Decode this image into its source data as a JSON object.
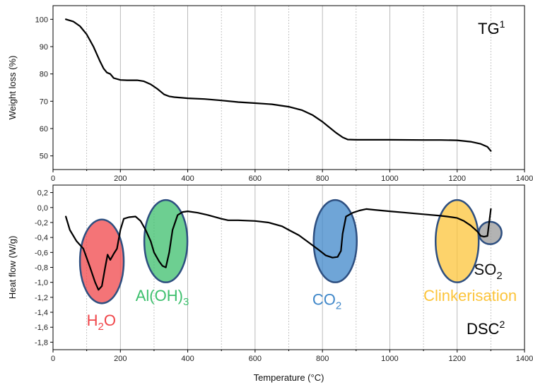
{
  "palette": {
    "h2o": "#f0464a",
    "aloh3": "#3cbf6c",
    "co2": "#3f87c9",
    "clinker": "#fcc43a",
    "so2": "#9a9a9a",
    "outline": "#2e4f80",
    "line": "#000000"
  },
  "chart_data": [
    {
      "type": "line",
      "id": "tg",
      "label_text": "TG",
      "label_sup": "1",
      "xlabel": "",
      "ylabel": "Weight loss (%)",
      "xlim": [
        0,
        1400
      ],
      "ylim": [
        45,
        105
      ],
      "x_ticks": [
        "0",
        "200",
        "400",
        "600",
        "800",
        "1000",
        "1200",
        "1400"
      ],
      "y_ticks": [
        "50",
        "60",
        "70",
        "80",
        "90",
        "100"
      ],
      "x_ticks_values": [
        0,
        200,
        400,
        600,
        800,
        1000,
        1200,
        1400
      ],
      "y_ticks_values": [
        50,
        60,
        70,
        80,
        90,
        100
      ],
      "grid": "vertical, solid at 200-step, dotted in between",
      "series": [
        {
          "x": [
            38,
            60,
            80,
            100,
            120,
            140,
            150,
            160,
            170,
            180,
            200,
            220,
            250,
            270,
            290,
            310,
            330,
            345,
            360,
            400,
            450,
            500,
            550,
            600,
            650,
            700,
            740,
            770,
            800,
            820,
            840,
            860,
            875,
            900,
            950,
            1000,
            1100,
            1150,
            1200,
            1240,
            1270,
            1290,
            1300
          ],
          "y": [
            100,
            99.2,
            97.5,
            94.5,
            90,
            84.5,
            82,
            80.5,
            80,
            78.5,
            77.8,
            77.7,
            77.7,
            77.3,
            76.2,
            74.5,
            72.5,
            71.8,
            71.5,
            71.1,
            70.8,
            70.3,
            69.7,
            69.3,
            68.9,
            68.0,
            66.7,
            65.0,
            62.5,
            60.5,
            58.5,
            56.8,
            56.0,
            55.9,
            55.9,
            55.9,
            55.8,
            55.8,
            55.7,
            55.2,
            54.4,
            53.3,
            51.8
          ]
        }
      ]
    },
    {
      "type": "line",
      "id": "dsc",
      "label_text": "DSC",
      "label_sup": "2",
      "xlabel": "Temperature (°C)",
      "ylabel": "Heat flow (W/g)",
      "xlim": [
        0,
        1400
      ],
      "ylim": [
        -1.9,
        0.3
      ],
      "x_ticks": [
        "0",
        "200",
        "400",
        "600",
        "800",
        "1000",
        "1200",
        "1400"
      ],
      "y_ticks": [
        "0,2",
        "0,0",
        "-0,2",
        "-0,4",
        "-0,6",
        "-0,8",
        "-1,0",
        "-1,2",
        "-1,4",
        "-1,6",
        "-1,8"
      ],
      "x_ticks_values": [
        0,
        200,
        400,
        600,
        800,
        1000,
        1200,
        1400
      ],
      "y_ticks_values": [
        0.2,
        0,
        -0.2,
        -0.4,
        -0.6,
        -0.8,
        -1.0,
        -1.2,
        -1.4,
        -1.6,
        -1.8
      ],
      "grid": "vertical, solid at 200-step, dotted in between",
      "series": [
        {
          "x": [
            38,
            50,
            70,
            90,
            110,
            125,
            135,
            145,
            155,
            162,
            170,
            180,
            190,
            200,
            210,
            225,
            245,
            260,
            275,
            290,
            300,
            315,
            325,
            335,
            345,
            355,
            370,
            385,
            400,
            430,
            460,
            500,
            520,
            550,
            600,
            640,
            680,
            700,
            730,
            760,
            790,
            810,
            830,
            845,
            855,
            860,
            870,
            890,
            910,
            930,
            950,
            1000,
            1050,
            1100,
            1150,
            1170,
            1185,
            1200,
            1220,
            1240,
            1260,
            1270,
            1280,
            1290,
            1300
          ],
          "y": [
            -0.12,
            -0.3,
            -0.45,
            -0.55,
            -0.8,
            -1.0,
            -1.1,
            -1.05,
            -0.8,
            -0.63,
            -0.7,
            -0.62,
            -0.55,
            -0.3,
            -0.15,
            -0.13,
            -0.12,
            -0.18,
            -0.3,
            -0.45,
            -0.6,
            -0.72,
            -0.78,
            -0.8,
            -0.6,
            -0.3,
            -0.1,
            -0.06,
            -0.05,
            -0.07,
            -0.1,
            -0.15,
            -0.17,
            -0.17,
            -0.18,
            -0.2,
            -0.25,
            -0.3,
            -0.37,
            -0.47,
            -0.57,
            -0.64,
            -0.67,
            -0.66,
            -0.58,
            -0.35,
            -0.12,
            -0.07,
            -0.04,
            -0.02,
            -0.03,
            -0.05,
            -0.07,
            -0.09,
            -0.11,
            -0.12,
            -0.13,
            -0.14,
            -0.18,
            -0.24,
            -0.32,
            -0.38,
            -0.39,
            -0.38,
            -0.02
          ]
        }
      ],
      "annotations": [
        {
          "id": "h2o",
          "text": "H",
          "sub": "2",
          "tail": "O",
          "color_key": "h2o",
          "ellipse": {
            "cx": 145,
            "cy": -0.72,
            "rx": 65,
            "ry": 0.56
          },
          "label_pos": {
            "x": 100,
            "y": -1.58
          }
        },
        {
          "id": "aloh3",
          "text": "Al(OH)",
          "sub": "3",
          "tail": "",
          "color_key": "aloh3",
          "ellipse": {
            "cx": 335,
            "cy": -0.45,
            "rx": 64,
            "ry": 0.55
          },
          "label_pos": {
            "x": 245,
            "y": -1.25
          }
        },
        {
          "id": "co2",
          "text": "CO",
          "sub": "2",
          "tail": "",
          "color_key": "co2",
          "ellipse": {
            "cx": 838,
            "cy": -0.45,
            "rx": 64,
            "ry": 0.55
          },
          "label_pos": {
            "x": 770,
            "y": -1.3
          }
        },
        {
          "id": "clinker",
          "text": "Clinkerisation",
          "sub": "",
          "tail": "",
          "color_key": "clinker",
          "ellipse": {
            "cx": 1200,
            "cy": -0.45,
            "rx": 64,
            "ry": 0.55
          },
          "label_pos": {
            "x": 1100,
            "y": -1.25
          }
        },
        {
          "id": "so2",
          "text": "SO",
          "sub": "2",
          "tail": "",
          "color_key": "so2",
          "ellipse": {
            "cx": 1298,
            "cy": -0.34,
            "rx": 34,
            "ry": 0.15
          },
          "label_pos": {
            "x": 1250,
            "y": -0.9
          }
        }
      ]
    }
  ]
}
